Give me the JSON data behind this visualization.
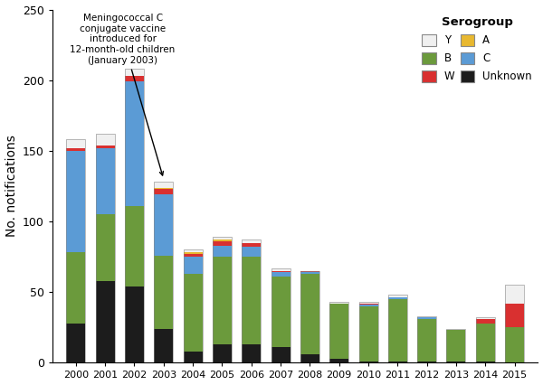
{
  "years": [
    2000,
    2001,
    2002,
    2003,
    2004,
    2005,
    2006,
    2007,
    2008,
    2009,
    2010,
    2011,
    2012,
    2013,
    2014,
    2015
  ],
  "serogroups": {
    "Unknown": [
      28,
      58,
      54,
      24,
      8,
      13,
      13,
      11,
      6,
      3,
      1,
      1,
      1,
      1,
      1,
      0
    ],
    "B": [
      50,
      47,
      57,
      52,
      55,
      62,
      62,
      50,
      57,
      39,
      39,
      44,
      30,
      22,
      27,
      25
    ],
    "C": [
      72,
      47,
      88,
      43,
      12,
      8,
      7,
      3,
      1,
      0,
      1,
      1,
      1,
      0,
      0,
      0
    ],
    "W": [
      2,
      2,
      4,
      4,
      2,
      3,
      3,
      1,
      1,
      0,
      1,
      0,
      0,
      0,
      3,
      17
    ],
    "A": [
      0,
      0,
      0,
      1,
      1,
      1,
      0,
      0,
      0,
      0,
      0,
      0,
      0,
      0,
      0,
      0
    ],
    "Y": [
      6,
      8,
      5,
      4,
      2,
      2,
      2,
      2,
      0,
      1,
      1,
      2,
      1,
      1,
      1,
      13
    ]
  },
  "colors": {
    "Unknown": "#1c1c1c",
    "B": "#6b9a3c",
    "C": "#5b9bd5",
    "A": "#e8b830",
    "W": "#d93030",
    "Y": "#f0f0f0"
  },
  "ylim": [
    0,
    250
  ],
  "yticks": [
    0,
    50,
    100,
    150,
    200,
    250
  ],
  "ylabel": "No. notifications",
  "annotation_text": "Meningococcal C\nconjugate vaccine\nintroduced for\n12-month-old children\n(January 2003)",
  "legend_title": "Serogroup",
  "bar_width": 0.65
}
